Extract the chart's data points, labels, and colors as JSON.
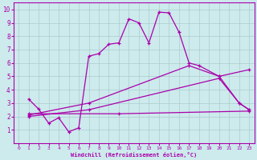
{
  "xlabel": "Windchill (Refroidissement éolien,°C)",
  "xlim": [
    -0.5,
    23.5
  ],
  "ylim": [
    0,
    10.5
  ],
  "xticks": [
    0,
    1,
    2,
    3,
    4,
    5,
    6,
    7,
    8,
    9,
    10,
    11,
    12,
    13,
    14,
    15,
    16,
    17,
    18,
    19,
    20,
    21,
    22,
    23
  ],
  "yticks": [
    1,
    2,
    3,
    4,
    5,
    6,
    7,
    8,
    9,
    10
  ],
  "bg_color": "#cdeaed",
  "line_color": "#aa00aa",
  "grid_color": "#aacccc",
  "series": {
    "main": [
      [
        1,
        3.3
      ],
      [
        2,
        2.55
      ],
      [
        3,
        1.5
      ],
      [
        4,
        1.9
      ],
      [
        5,
        0.85
      ],
      [
        6,
        1.15
      ],
      [
        7,
        6.5
      ],
      [
        8,
        6.7
      ],
      [
        9,
        7.4
      ],
      [
        10,
        7.5
      ],
      [
        11,
        9.3
      ],
      [
        12,
        9.0
      ],
      [
        13,
        7.5
      ],
      [
        14,
        9.8
      ],
      [
        15,
        9.75
      ],
      [
        16,
        8.3
      ],
      [
        17,
        6.0
      ],
      [
        18,
        5.8
      ],
      [
        20,
        5.0
      ],
      [
        22,
        3.0
      ],
      [
        23,
        2.5
      ]
    ],
    "line_flat": [
      [
        1,
        2.2
      ],
      [
        10,
        2.2
      ],
      [
        23,
        2.4
      ]
    ],
    "line_mid": [
      [
        1,
        2.0
      ],
      [
        7,
        2.5
      ],
      [
        20,
        4.85
      ],
      [
        22,
        3.0
      ],
      [
        23,
        2.5
      ]
    ],
    "line_upper": [
      [
        1,
        2.1
      ],
      [
        7,
        3.0
      ],
      [
        17,
        5.8
      ],
      [
        20,
        5.0
      ],
      [
        23,
        5.5
      ]
    ]
  }
}
